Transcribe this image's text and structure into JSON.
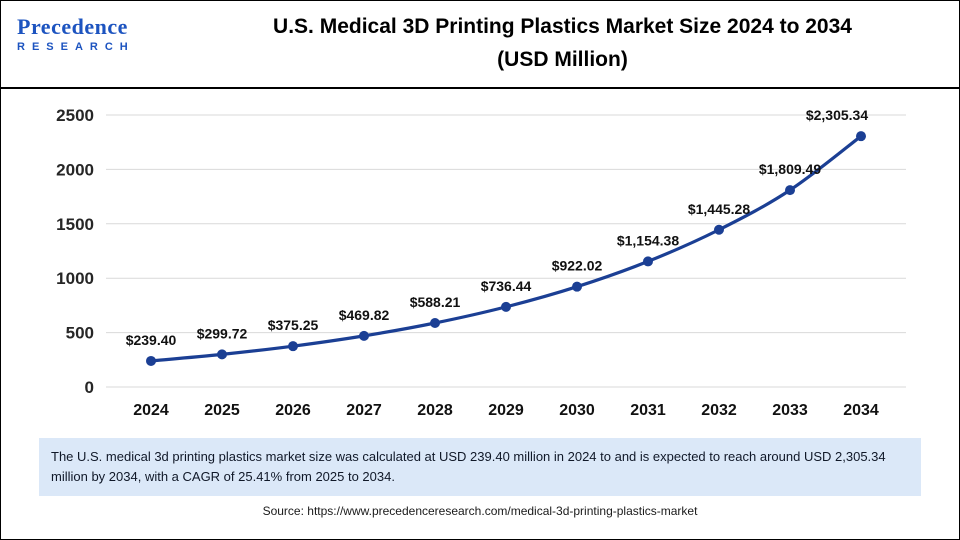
{
  "header": {
    "logo_name": "Precedence",
    "logo_subtitle": "RESEARCH",
    "title_line1": "U.S. Medical 3D Printing Plastics Market Size 2024 to 2034",
    "title_line2": "(USD Million)"
  },
  "chart_data": {
    "type": "line",
    "title": "U.S. Medical 3D Printing Plastics Market Size 2024 to 2034 (USD Million)",
    "categories": [
      "2024",
      "2025",
      "2026",
      "2027",
      "2028",
      "2029",
      "2030",
      "2031",
      "2032",
      "2033",
      "2034"
    ],
    "values": [
      239.4,
      299.72,
      375.25,
      469.82,
      588.21,
      736.44,
      922.02,
      1154.38,
      1445.28,
      1809.49,
      2305.34
    ],
    "point_labels": [
      "$239.40",
      "$299.72",
      "$375.25",
      "$469.82",
      "$588.21",
      "$736.44",
      "$922.02",
      "$1,154.38",
      "$1,445.28",
      "$1,809.49",
      "$2,305.34"
    ],
    "xlabel": "",
    "ylabel": "",
    "ylim": [
      0,
      2500
    ],
    "yticks": [
      0,
      500,
      1000,
      1500,
      2000,
      2500
    ],
    "grid": true,
    "legend": "none",
    "line_color": "#1b3f94",
    "label_color": "#111111",
    "grid_color": "#d9d9d9",
    "tick_color": "#262626"
  },
  "footer": {
    "note": "The U.S. medical 3d printing plastics market size was calculated at USD 239.40 million in 2024 to and is expected to reach around USD 2,305.34 million by 2034, with a CAGR of 25.41% from 2025 to 2034.",
    "source": "Source: https://www.precedenceresearch.com/medical-3d-printing-plastics-market"
  }
}
